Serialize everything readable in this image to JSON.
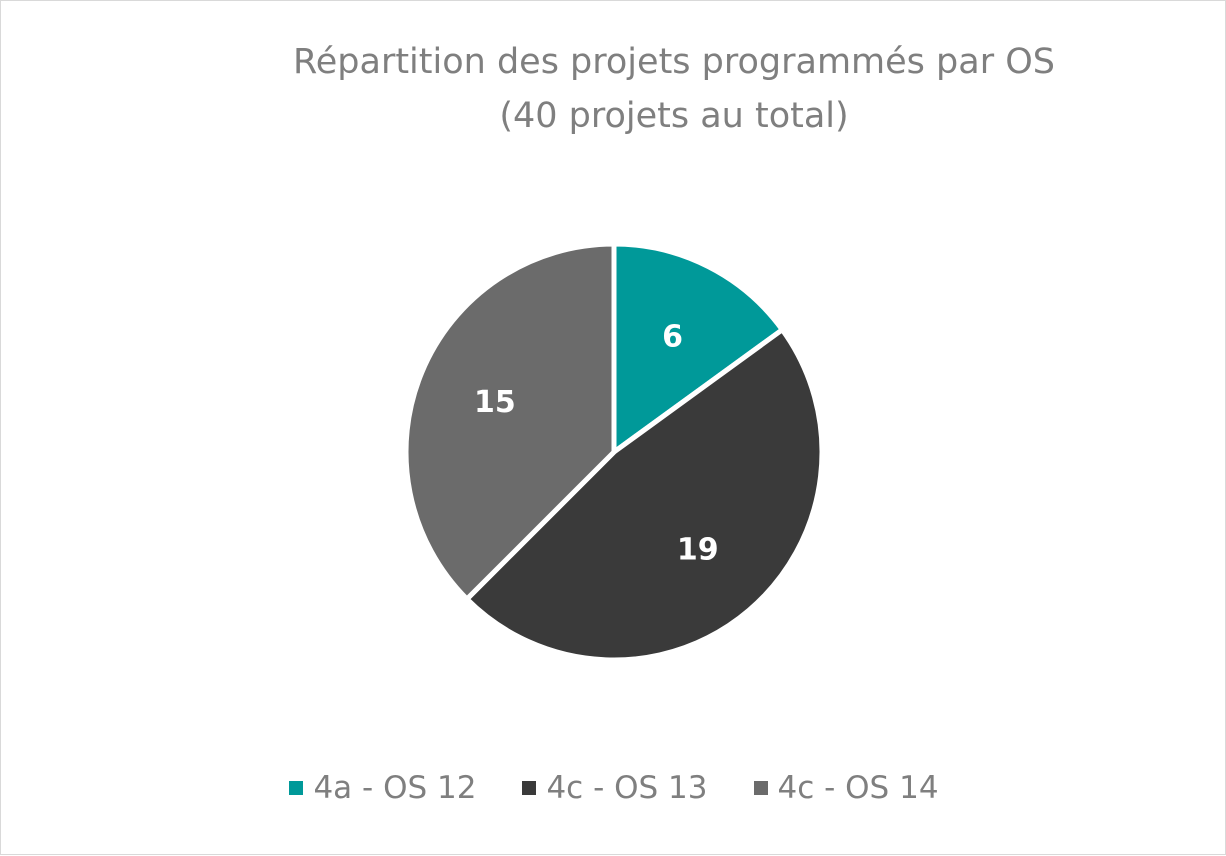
{
  "chart_data": {
    "type": "pie",
    "title": "Répartition des projets programmés par OS",
    "subtitle": "(40 projets au total)",
    "categories": [
      "4a - OS 12",
      "4c - OS 13",
      "4c - OS 14"
    ],
    "values": [
      6,
      19,
      15
    ],
    "colors": [
      "#009999",
      "#3a3a3a",
      "#6b6b6b"
    ],
    "data_labels": [
      "6",
      "19",
      "15"
    ],
    "legend_position": "bottom"
  }
}
